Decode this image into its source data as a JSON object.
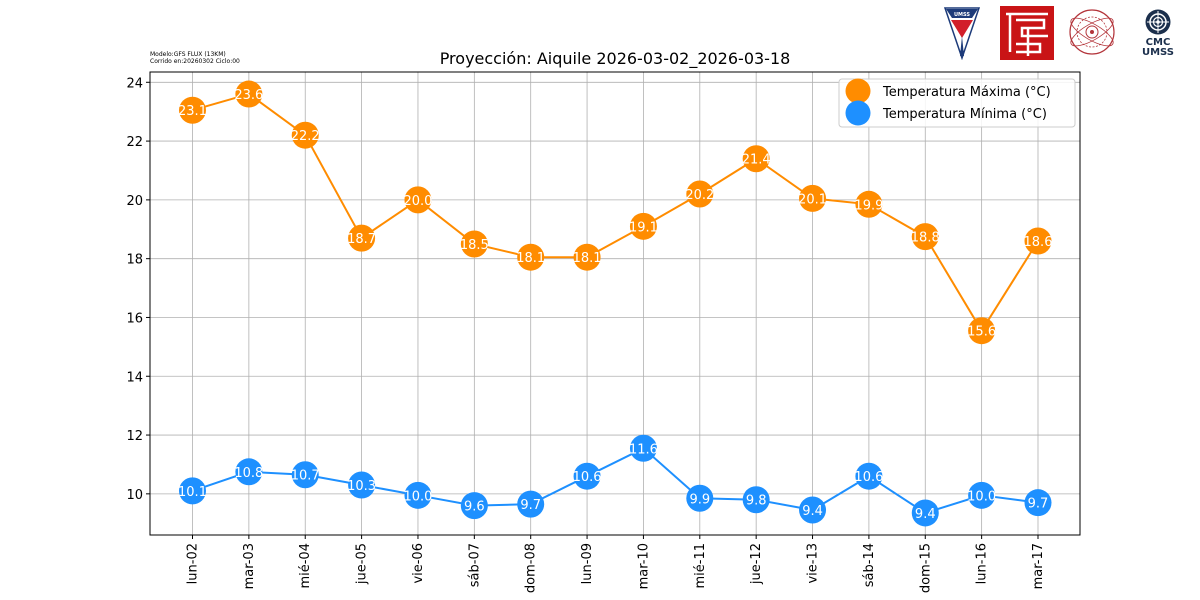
{
  "header": {
    "model_line": "Modelo:GFS FLUX (13KM)",
    "run_line": "Corrido en:20260302 Ciclo:00",
    "logos": [
      {
        "name": "umss-logo",
        "text": "UMSS"
      },
      {
        "name": "red-emblem-logo"
      },
      {
        "name": "red-seal-logo"
      },
      {
        "name": "cmc-umss-logo",
        "line1": "CMC",
        "line2": "UMSS"
      }
    ]
  },
  "chart_data": {
    "type": "line",
    "title": "Proyección: Aiquile 2026-03-02_2026-03-18",
    "xlabel": "",
    "ylabel": "",
    "ylim": [
      8.6,
      24.35
    ],
    "yticks": [
      10,
      12,
      14,
      16,
      18,
      20,
      22,
      24
    ],
    "grid": true,
    "legend_position": "top-right",
    "categories": [
      "lun-02",
      "mar-03",
      "mié-04",
      "jue-05",
      "vie-06",
      "sáb-07",
      "dom-08",
      "lun-09",
      "mar-10",
      "mié-11",
      "jue-12",
      "vie-13",
      "sáb-14",
      "dom-15",
      "lun-16",
      "mar-17"
    ],
    "series": [
      {
        "name": "Temperatura Máxima  (°C)",
        "color": "#ff8c00",
        "values": [
          23.05,
          23.6,
          22.2,
          18.7,
          20.0,
          18.5,
          18.05,
          18.05,
          19.1,
          20.2,
          21.4,
          20.05,
          19.85,
          18.75,
          15.55,
          18.6
        ],
        "labels": [
          "23.1",
          "23.6",
          "22.2",
          "18.7",
          "20.0",
          "18.5",
          "18.1",
          "18.1",
          "19.1",
          "20.2",
          "21.4",
          "20.1",
          "19.9",
          "18.8",
          "15.6",
          "18.6"
        ]
      },
      {
        "name": "Temperatura Mínima  (°C)",
        "color": "#1e90ff",
        "values": [
          10.1,
          10.75,
          10.65,
          10.3,
          9.95,
          9.6,
          9.65,
          10.6,
          11.55,
          9.85,
          9.8,
          9.45,
          10.6,
          9.35,
          9.95,
          9.7
        ],
        "labels": [
          "10.1",
          "10.8",
          "10.7",
          "10.3",
          "10.0",
          "9.6",
          "9.7",
          "10.6",
          "11.6",
          "9.9",
          "9.8",
          "9.4",
          "10.6",
          "9.4",
          "10.0",
          "9.7"
        ]
      }
    ]
  }
}
